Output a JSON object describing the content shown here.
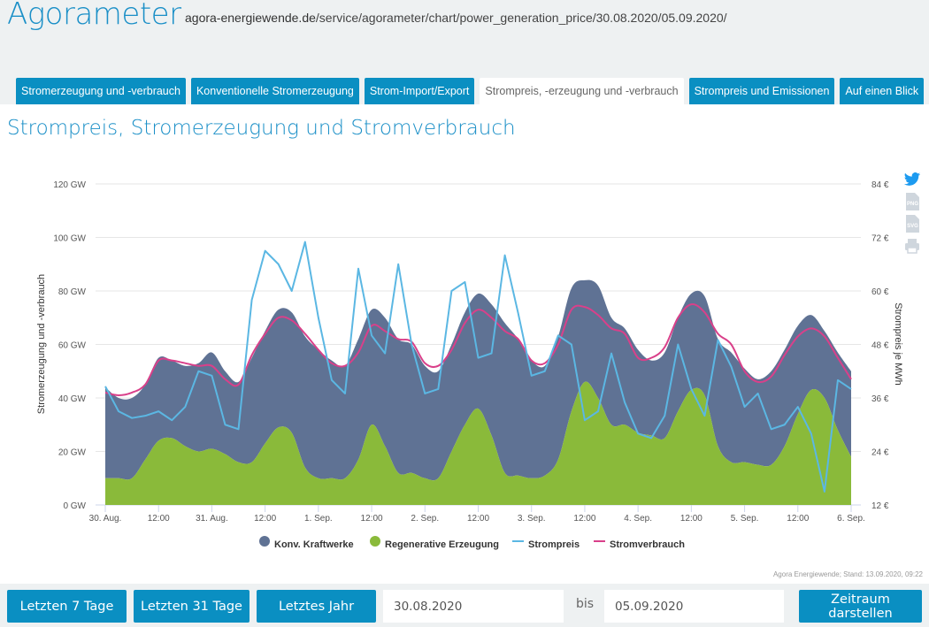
{
  "header": {
    "brand": "Agorameter",
    "url_domain": "agora-energiewende.de",
    "url_path": "/service/agorameter/chart/power_generation_price/30.08.2020/05.09.2020/"
  },
  "tabs": [
    {
      "label": "Stromerzeugung und -verbrauch",
      "active": false
    },
    {
      "label": "Konventionelle Stromerzeugung",
      "active": false
    },
    {
      "label": "Strom-Import/Export",
      "active": false
    },
    {
      "label": "Strompreis, -erzeugung und -verbrauch",
      "active": true
    },
    {
      "label": "Strompreis und Emissionen",
      "active": false
    },
    {
      "label": "Auf einen Blick",
      "active": false
    }
  ],
  "page_title": "Strompreis, Stromerzeugung und Stromverbrauch",
  "side_icons": [
    "twitter-icon",
    "png-export-icon",
    "svg-export-icon",
    "print-icon"
  ],
  "side_icon_labels": {
    "png": "PNG",
    "svg": "SVG"
  },
  "colors": {
    "accent": "#0a8fc2",
    "konv": "#5f7294",
    "reg": "#8aba3a",
    "price": "#5bb7e3",
    "consumption": "#d9408a"
  },
  "chart_data": {
    "type": "area",
    "title": "",
    "x_unit": "hours since 30.08.2020 00:00",
    "x": [
      0,
      3,
      6,
      9,
      12,
      15,
      18,
      21,
      24,
      27,
      30,
      33,
      36,
      39,
      42,
      45,
      48,
      51,
      54,
      57,
      60,
      63,
      66,
      69,
      72,
      75,
      78,
      81,
      84,
      87,
      90,
      93,
      96,
      99,
      102,
      105,
      108,
      111,
      114,
      117,
      120,
      123,
      126,
      129,
      132,
      135,
      138,
      141,
      144,
      147,
      150,
      153,
      156,
      159,
      162,
      165,
      168
    ],
    "x_ticks": [
      "30. Aug.",
      "12:00",
      "31. Aug.",
      "12:00",
      "1. Sep.",
      "12:00",
      "2. Sep.",
      "12:00",
      "3. Sep.",
      "12:00",
      "4. Sep.",
      "12:00",
      "5. Sep.",
      "12:00",
      "6. Sep."
    ],
    "ylabel": "Stromerzeugung und -verbrauch",
    "ylabel_right": "Strompreis je MWh",
    "ylim": [
      0,
      120
    ],
    "y_ticks": [
      "0 GW",
      "20 GW",
      "40 GW",
      "60 GW",
      "80 GW",
      "100 GW",
      "120 GW"
    ],
    "ylim_right": [
      12,
      84
    ],
    "y_ticks_right": [
      "12 €",
      "24 €",
      "36 €",
      "48 €",
      "60 €",
      "72 €",
      "84 €"
    ],
    "grid": true,
    "legend_position": "bottom",
    "series": [
      {
        "name": "Konv. Kraftwerke",
        "type": "area-stacked",
        "axis": "left",
        "unit": "GW",
        "values": [
          34,
          30,
          30,
          28,
          31,
          29,
          30,
          33,
          36,
          31,
          30,
          39,
          42,
          44,
          45,
          49,
          48,
          44,
          42,
          45,
          43,
          48,
          50,
          48,
          42,
          40,
          40,
          42,
          43,
          49,
          56,
          51,
          44,
          41,
          46,
          46,
          38,
          42,
          40,
          36,
          31,
          28,
          32,
          35,
          36,
          37,
          40,
          41,
          35,
          32,
          35,
          36,
          33,
          28,
          25,
          29,
          32
        ]
      },
      {
        "name": "Regenerative Erzeugung",
        "type": "area-stacked",
        "axis": "left",
        "unit": "GW",
        "values": [
          10,
          10,
          10,
          17,
          24,
          25,
          22,
          20,
          21,
          19,
          16,
          16,
          23,
          29,
          27,
          14,
          10,
          10,
          10,
          17,
          30,
          22,
          12,
          12,
          10,
          10,
          20,
          30,
          36,
          26,
          12,
          11,
          10,
          11,
          17,
          35,
          46,
          40,
          30,
          30,
          27,
          26,
          25,
          35,
          43,
          41,
          22,
          16,
          16,
          15,
          15,
          22,
          34,
          43,
          40,
          28,
          18
        ]
      },
      {
        "name": "Strompreis",
        "type": "line",
        "axis": "right",
        "unit": "€/MWh",
        "values": [
          38.6,
          33,
          31.5,
          32,
          33,
          31,
          34,
          42,
          41,
          30,
          29,
          58,
          69,
          66,
          60,
          71,
          54,
          40,
          37,
          65,
          50,
          46,
          66,
          48,
          37,
          38,
          60,
          62,
          45,
          46,
          68,
          55,
          41,
          42,
          50,
          48,
          31,
          33,
          46,
          35,
          28,
          27,
          32,
          48,
          38,
          32,
          49,
          43,
          34,
          37,
          29,
          30,
          34,
          28,
          15,
          40,
          38
        ]
      },
      {
        "name": "Stromverbrauch",
        "type": "line",
        "axis": "left",
        "unit": "GW",
        "values": [
          42,
          41,
          42,
          45,
          54,
          54,
          53,
          52,
          52,
          47,
          45,
          56,
          64,
          70,
          69,
          64,
          58,
          53,
          52,
          57,
          67,
          65,
          62,
          61,
          53,
          52,
          58,
          68,
          73,
          70,
          65,
          62,
          54,
          53,
          60,
          73,
          74,
          71,
          66,
          64,
          55,
          55,
          59,
          70,
          75,
          72,
          64,
          60,
          50,
          46,
          48,
          56,
          63,
          66,
          63,
          55,
          47
        ]
      }
    ]
  },
  "legend": [
    {
      "label": "Konv. Kraftwerke",
      "kind": "circle"
    },
    {
      "label": "Regenerative Erzeugung",
      "kind": "circle"
    },
    {
      "label": "Strompreis",
      "kind": "line"
    },
    {
      "label": "Stromverbrauch",
      "kind": "line"
    }
  ],
  "credit": "Agora Energiewende; Stand: 13.09.2020, 09:22",
  "footer": {
    "btn_7": "Letzten 7 Tage",
    "btn_31": "Letzten 31 Tage",
    "btn_year": "Letztes Jahr",
    "from_date": "30.08.2020",
    "bis": "bis",
    "to_date": "05.09.2020",
    "submit": "Zeitraum darstellen"
  }
}
